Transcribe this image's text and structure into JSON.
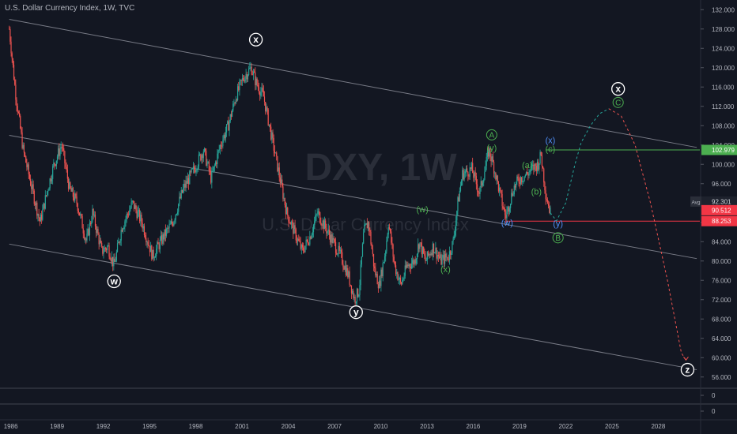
{
  "header": {
    "title": "U.S. Dollar Currency Index, 1W, TVC"
  },
  "watermark": {
    "symbol": "DXY, 1W",
    "description": "U.S. Dollar Currency Index"
  },
  "colors": {
    "background": "#131722",
    "axis_text": "#b2b5be",
    "grid": "#2a2e39",
    "channel": "#787b86",
    "candle_up": "#26a69a",
    "candle_down": "#ef5350",
    "green_level": "#4caf50",
    "red_level": "#f23645",
    "wave_blue": "#4f8ef7",
    "wave_green": "#4caf50"
  },
  "chart_data": {
    "type": "candlestick",
    "timeframe": "1W",
    "x_tick_labels": [
      "1986",
      "1989",
      "1992",
      "1995",
      "1998",
      "2001",
      "2004",
      "2007",
      "2010",
      "2013",
      "2016",
      "2019",
      "2022",
      "2025",
      "2028"
    ],
    "y_ticks": [
      132,
      128,
      124,
      120,
      116,
      112,
      108,
      104,
      100,
      96,
      92,
      88,
      84,
      80,
      76,
      72,
      68,
      64,
      60,
      56
    ],
    "ylim": [
      54,
      134
    ],
    "xlim": [
      1985.3,
      2030.7
    ],
    "price_path": [
      [
        1985.9,
        128
      ],
      [
        1986.3,
        115
      ],
      [
        1986.8,
        103
      ],
      [
        1987.3,
        96
      ],
      [
        1987.9,
        88
      ],
      [
        1988.4,
        95
      ],
      [
        1988.8,
        100
      ],
      [
        1989.3,
        104
      ],
      [
        1989.8,
        95
      ],
      [
        1990.3,
        92
      ],
      [
        1990.9,
        84
      ],
      [
        1991.3,
        90
      ],
      [
        1991.9,
        82
      ],
      [
        1992.3,
        83
      ],
      [
        1992.7,
        79
      ],
      [
        1993.2,
        87
      ],
      [
        1993.9,
        92
      ],
      [
        1994.5,
        88
      ],
      [
        1995.2,
        81
      ],
      [
        1995.9,
        85
      ],
      [
        1996.5,
        88
      ],
      [
        1997.2,
        95
      ],
      [
        1997.9,
        99
      ],
      [
        1998.5,
        103
      ],
      [
        1999.0,
        97
      ],
      [
        1999.6,
        104
      ],
      [
        2000.1,
        108
      ],
      [
        2000.6,
        114
      ],
      [
        2001.1,
        118
      ],
      [
        2001.6,
        120
      ],
      [
        2001.9,
        117
      ],
      [
        2002.4,
        114
      ],
      [
        2002.9,
        106
      ],
      [
        2003.4,
        98
      ],
      [
        2003.9,
        90
      ],
      [
        2004.4,
        86
      ],
      [
        2004.9,
        82
      ],
      [
        2005.4,
        85
      ],
      [
        2005.9,
        90
      ],
      [
        2006.4,
        87
      ],
      [
        2006.9,
        84
      ],
      [
        2007.4,
        81
      ],
      [
        2007.9,
        77
      ],
      [
        2008.3,
        72
      ],
      [
        2008.6,
        74
      ],
      [
        2008.9,
        86
      ],
      [
        2009.2,
        88
      ],
      [
        2009.6,
        78
      ],
      [
        2009.9,
        75
      ],
      [
        2010.3,
        82
      ],
      [
        2010.5,
        88
      ],
      [
        2010.9,
        79
      ],
      [
        2011.3,
        75
      ],
      [
        2011.7,
        79
      ],
      [
        2012.2,
        80
      ],
      [
        2012.5,
        84
      ],
      [
        2012.9,
        80
      ],
      [
        2013.4,
        83
      ],
      [
        2013.9,
        80
      ],
      [
        2014.4,
        81
      ],
      [
        2014.7,
        84
      ],
      [
        2015.0,
        92
      ],
      [
        2015.3,
        98
      ],
      [
        2015.9,
        99
      ],
      [
        2016.4,
        94
      ],
      [
        2016.9,
        101
      ],
      [
        2017.0,
        103
      ],
      [
        2017.3,
        100
      ],
      [
        2017.8,
        93
      ],
      [
        2018.1,
        89
      ],
      [
        2018.6,
        95
      ],
      [
        2019.0,
        97
      ],
      [
        2019.5,
        98
      ],
      [
        2019.8,
        99
      ],
      [
        2020.2,
        100
      ],
      [
        2020.4,
        102
      ],
      [
        2020.7,
        94
      ],
      [
        2021.0,
        90
      ]
    ],
    "projection_up": [
      [
        2021.0,
        90
      ],
      [
        2021.4,
        88.3
      ],
      [
        2022.0,
        92
      ],
      [
        2022.6,
        100
      ],
      [
        2023.0,
        104.5
      ],
      [
        2023.6,
        108
      ],
      [
        2024.2,
        110.5
      ],
      [
        2024.8,
        111.5
      ]
    ],
    "projection_down": [
      [
        2024.8,
        111.5
      ],
      [
        2025.6,
        110
      ],
      [
        2026.5,
        104
      ],
      [
        2027.5,
        92
      ],
      [
        2028.6,
        76
      ],
      [
        2029.5,
        61
      ],
      [
        2029.8,
        59.5
      ]
    ],
    "channel_lines": [
      {
        "name": "upper",
        "points": [
          [
            1985.9,
            130
          ],
          [
            2030.5,
            103.5
          ]
        ]
      },
      {
        "name": "middle",
        "points": [
          [
            1985.9,
            106
          ],
          [
            2030.5,
            80.5
          ]
        ]
      },
      {
        "name": "lower",
        "points": [
          [
            1985.9,
            83.5
          ],
          [
            2030.5,
            57.5
          ]
        ]
      }
    ],
    "horizontal_levels": [
      {
        "value": 102.979,
        "label": "102.979",
        "color": "#4caf50",
        "x_start": 2020.7
      },
      {
        "value": 88.253,
        "label": "88.253",
        "color": "#f23645",
        "x_start": 2018.1
      }
    ],
    "price_labels": [
      {
        "value": 92.301,
        "label": "92.301",
        "prefix": "Avg",
        "color": "#1e222d",
        "text_color": "#d1d4dc"
      },
      {
        "value": 90.512,
        "label": "90.512",
        "color": "#f23645",
        "text_color": "#ffffff"
      }
    ],
    "wave_labels": [
      {
        "text": "x",
        "x": 2001.9,
        "y": 125.8,
        "style": "circle-white"
      },
      {
        "text": "w",
        "x": 1992.7,
        "y": 75.8,
        "style": "circle-white"
      },
      {
        "text": "y",
        "x": 2008.4,
        "y": 69.4,
        "style": "circle-white"
      },
      {
        "text": "x",
        "x": 2025.4,
        "y": 115.6,
        "style": "circle-white"
      },
      {
        "text": "z",
        "x": 2029.9,
        "y": 57.5,
        "style": "circle-white"
      },
      {
        "text": "A",
        "x": 2017.2,
        "y": 106.1,
        "style": "circle-green"
      },
      {
        "text": "B",
        "x": 2021.5,
        "y": 84.8,
        "style": "circle-green"
      },
      {
        "text": "C",
        "x": 2025.4,
        "y": 112.8,
        "style": "circle-green"
      },
      {
        "text": "(y)",
        "x": 2017.2,
        "y": 103.5,
        "style": "text-green"
      },
      {
        "text": "(w)",
        "x": 2012.7,
        "y": 90.7,
        "style": "text-green"
      },
      {
        "text": "(x)",
        "x": 2014.2,
        "y": 78.3,
        "style": "text-green"
      },
      {
        "text": "(a)",
        "x": 2019.5,
        "y": 99.9,
        "style": "text-green"
      },
      {
        "text": "(b)",
        "x": 2020.1,
        "y": 94.4,
        "style": "text-green"
      },
      {
        "text": "(c)",
        "x": 2021.0,
        "y": 103.2,
        "style": "text-green"
      },
      {
        "text": "(x)",
        "x": 2021.0,
        "y": 105.0,
        "style": "text-blue"
      },
      {
        "text": "(w)",
        "x": 2018.2,
        "y": 88.0,
        "style": "text-blue"
      },
      {
        "text": "(y)",
        "x": 2021.5,
        "y": 87.8,
        "style": "text-blue"
      }
    ],
    "sub_panes": [
      {
        "name": "pane-1",
        "zero_label": "0"
      },
      {
        "name": "pane-2",
        "zero_label": "0"
      }
    ]
  }
}
